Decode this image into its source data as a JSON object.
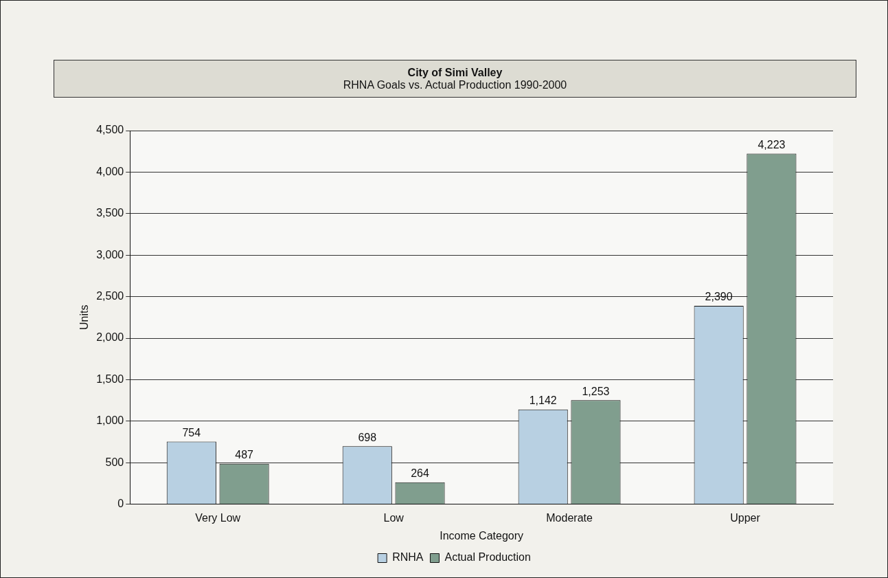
{
  "chart_data": {
    "type": "bar",
    "title": "City of Simi Valley",
    "subtitle": "RHNA Goals vs. Actual Production 1990-2000",
    "xlabel": "Income Category",
    "ylabel": "Units",
    "categories": [
      "Very Low",
      "Low",
      "Moderate",
      "Upper"
    ],
    "series": [
      {
        "name": "RNHA",
        "color": "#b8d0e2",
        "values": [
          754,
          698,
          1142,
          2390
        ],
        "value_labels": [
          "754",
          "698",
          "1,142",
          "2,390"
        ]
      },
      {
        "name": "Actual Production",
        "color": "#809e8e",
        "values": [
          487,
          264,
          1253,
          4223
        ],
        "value_labels": [
          "487",
          "264",
          "1,253",
          "4,223"
        ]
      }
    ],
    "ylim": [
      0,
      4500
    ],
    "yticks": [
      {
        "value": 0,
        "label": "0"
      },
      {
        "value": 500,
        "label": "500"
      },
      {
        "value": 1000,
        "label": "1,000"
      },
      {
        "value": 1500,
        "label": "1,500"
      },
      {
        "value": 2000,
        "label": "2,000"
      },
      {
        "value": 2500,
        "label": "2,500"
      },
      {
        "value": 3000,
        "label": "3,000"
      },
      {
        "value": 3500,
        "label": "3,500"
      },
      {
        "value": 4000,
        "label": "4,000"
      },
      {
        "value": 4500,
        "label": "4,500"
      }
    ],
    "grid": "y",
    "legend": "bottom"
  }
}
